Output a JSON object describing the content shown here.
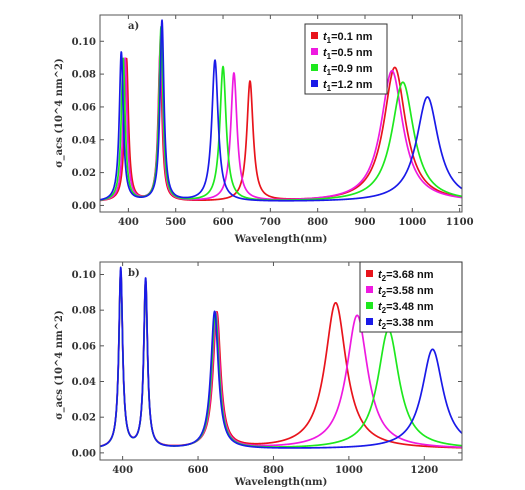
{
  "chart_data": [
    {
      "type": "line",
      "panel_label": "a)",
      "xlabel": "Wavelength(nm)",
      "ylabel": "σ_acs (10^4 nm^2)",
      "xlim": [
        340,
        1105
      ],
      "ylim": [
        -0.004,
        0.116
      ],
      "xticks": [
        400,
        500,
        600,
        700,
        800,
        900,
        1000,
        1100
      ],
      "yticks": [
        0.0,
        0.02,
        0.04,
        0.06,
        0.08,
        0.1
      ],
      "ytick_labels": [
        "0.00",
        "0.02",
        "0.04",
        "0.06",
        "0.08",
        "0.10"
      ],
      "legend_position": "top-right",
      "series": [
        {
          "label_var": "t",
          "label_sub": "1",
          "label_value": "=0.1 nm",
          "color": "#e8141c",
          "baseline": 0.002,
          "peaks": [
            {
              "center": 396,
              "height": 0.087,
              "width": 5
            },
            {
              "center": 467,
              "height": 0.09,
              "width": 5
            },
            {
              "center": 657,
              "height": 0.073,
              "width": 8
            },
            {
              "center": 963,
              "height": 0.082,
              "width": 28
            }
          ]
        },
        {
          "label_var": "t",
          "label_sub": "1",
          "label_value": "=0.5 nm",
          "color": "#ee1ae0",
          "baseline": 0.002,
          "peaks": [
            {
              "center": 393,
              "height": 0.087,
              "width": 5
            },
            {
              "center": 468,
              "height": 0.1,
              "width": 5
            },
            {
              "center": 623,
              "height": 0.078,
              "width": 8
            },
            {
              "center": 957,
              "height": 0.08,
              "width": 28
            }
          ]
        },
        {
          "label_var": "t",
          "label_sub": "1",
          "label_value": "=0.9 nm",
          "color": "#1ee81e",
          "baseline": 0.002,
          "peaks": [
            {
              "center": 389,
              "height": 0.087,
              "width": 5
            },
            {
              "center": 469,
              "height": 0.106,
              "width": 5
            },
            {
              "center": 600,
              "height": 0.082,
              "width": 8
            },
            {
              "center": 980,
              "height": 0.073,
              "width": 28
            }
          ]
        },
        {
          "label_var": "t",
          "label_sub": "1",
          "label_value": "=1.2 nm",
          "color": "#1a1ae8",
          "baseline": 0.002,
          "peaks": [
            {
              "center": 385,
              "height": 0.091,
              "width": 5
            },
            {
              "center": 471,
              "height": 0.11,
              "width": 5
            },
            {
              "center": 583,
              "height": 0.086,
              "width": 8
            },
            {
              "center": 1032,
              "height": 0.064,
              "width": 28
            }
          ]
        }
      ]
    },
    {
      "type": "line",
      "panel_label": "b)",
      "xlabel": "Wavelength(nm)",
      "ylabel": "σ_acs (10^4 nm^2)",
      "xlim": [
        340,
        1300
      ],
      "ylim": [
        -0.004,
        0.107
      ],
      "xticks": [
        400,
        600,
        800,
        1000,
        1200
      ],
      "yticks": [
        0.0,
        0.02,
        0.04,
        0.06,
        0.08,
        0.1
      ],
      "ytick_labels": [
        "0.00",
        "0.02",
        "0.04",
        "0.06",
        "0.08",
        "0.10"
      ],
      "legend_position": "top-right",
      "series": [
        {
          "label_var": "t",
          "label_sub": "2",
          "label_value": "=3.68 nm",
          "color": "#e8141c",
          "baseline": 0.002,
          "peaks": [
            {
              "center": 395,
              "height": 0.099,
              "width": 6
            },
            {
              "center": 461,
              "height": 0.093,
              "width": 6
            },
            {
              "center": 650,
              "height": 0.076,
              "width": 12
            },
            {
              "center": 965,
              "height": 0.082,
              "width": 34
            }
          ]
        },
        {
          "label_var": "t",
          "label_sub": "2",
          "label_value": "=3.58 nm",
          "color": "#ee1ae0",
          "baseline": 0.002,
          "peaks": [
            {
              "center": 395,
              "height": 0.099,
              "width": 6
            },
            {
              "center": 461,
              "height": 0.093,
              "width": 6
            },
            {
              "center": 648,
              "height": 0.076,
              "width": 12
            },
            {
              "center": 1022,
              "height": 0.075,
              "width": 34
            }
          ]
        },
        {
          "label_var": "t",
          "label_sub": "2",
          "label_value": "=3.48 nm",
          "color": "#1ee81e",
          "baseline": 0.002,
          "peaks": [
            {
              "center": 395,
              "height": 0.099,
              "width": 6
            },
            {
              "center": 461,
              "height": 0.093,
              "width": 6
            },
            {
              "center": 646,
              "height": 0.076,
              "width": 12
            },
            {
              "center": 1105,
              "height": 0.067,
              "width": 34
            }
          ]
        },
        {
          "label_var": "t",
          "label_sub": "2",
          "label_value": "=3.38 nm",
          "color": "#1a1ae8",
          "baseline": 0.002,
          "peaks": [
            {
              "center": 395,
              "height": 0.101,
              "width": 6
            },
            {
              "center": 461,
              "height": 0.095,
              "width": 6
            },
            {
              "center": 644,
              "height": 0.077,
              "width": 12
            },
            {
              "center": 1222,
              "height": 0.056,
              "width": 34
            }
          ]
        }
      ]
    }
  ]
}
